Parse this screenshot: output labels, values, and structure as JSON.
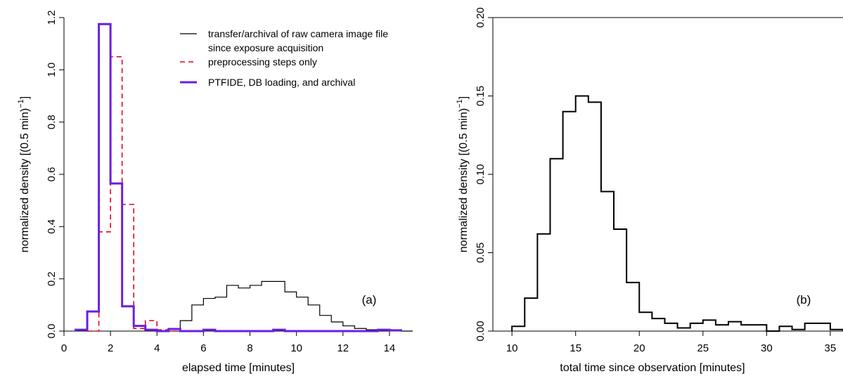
{
  "chart_data": [
    {
      "type": "line",
      "panel_label": "(a)",
      "xlabel": "elapsed time [minutes]",
      "ylabel": "normalized density  [(0.5 min)",
      "ylabel_sup": "−1",
      "ylabel_close": "]",
      "xlim": [
        0,
        15
      ],
      "ylim": [
        0,
        1.2
      ],
      "xticks": [
        0,
        2,
        4,
        6,
        8,
        10,
        12,
        14
      ],
      "yticks": [
        0.0,
        0.2,
        0.4,
        0.6,
        0.8,
        1.0,
        1.2
      ],
      "ytick_labels": [
        "0.0",
        "0.2",
        "0.4",
        "0.6",
        "0.8",
        "1.0",
        "1.2"
      ],
      "bin_width": 0.5,
      "grid": false,
      "legend_position": "top-right",
      "series": [
        {
          "name": "transfer/archival of raw camera image file",
          "name_line2": "since exposure acquisition",
          "color": "#000000",
          "style": "solid",
          "width": 1.2,
          "bins_start": [
            4.5,
            5,
            5.5,
            6,
            6.5,
            7,
            7.5,
            8,
            8.5,
            9,
            9.5,
            10,
            10.5,
            11,
            11.5,
            12,
            12.5,
            13,
            13.5,
            14,
            14.5
          ],
          "values": [
            0.01,
            0.04,
            0.1,
            0.125,
            0.13,
            0.175,
            0.165,
            0.175,
            0.19,
            0.19,
            0.15,
            0.13,
            0.1,
            0.06,
            0.035,
            0.02,
            0.01,
            0.005,
            0.005,
            0.005,
            0
          ]
        },
        {
          "name": "preprocessing steps only",
          "color": "#e8001c",
          "style": "dashed",
          "width": 1.6,
          "bins_start": [
            1,
            1.5,
            2,
            2.5,
            3,
            3.5,
            4,
            4.5
          ],
          "values": [
            0,
            0.38,
            1.05,
            0.485,
            0.01,
            0.04,
            0.005,
            0
          ]
        },
        {
          "name": "PTFIDE, DB loading, and archival",
          "color": "#6a1fe0",
          "style": "solid",
          "width": 3,
          "bins_start": [
            0.5,
            1,
            1.5,
            2,
            2.5,
            3,
            3.5,
            4,
            4.5,
            5,
            5.5,
            6,
            6.5,
            7,
            7.5,
            8,
            8.5,
            9,
            9.5,
            10,
            10.5,
            11,
            11.5,
            12,
            12.5,
            13,
            13.5,
            14
          ],
          "values": [
            0.005,
            0.075,
            1.175,
            0.565,
            0.095,
            0.02,
            0.005,
            0,
            0.008,
            0,
            0,
            0.005,
            0,
            0,
            0,
            0,
            0,
            0.005,
            0,
            0,
            0,
            0,
            0,
            0,
            0,
            0,
            0.005,
            0.003
          ]
        }
      ]
    },
    {
      "type": "line",
      "panel_label": "(b)",
      "xlabel": "total time since observation [minutes]",
      "ylabel": "normalized density  [(0.5 min)",
      "ylabel_sup": "−1",
      "ylabel_close": "]",
      "xlim": [
        8.5,
        36
      ],
      "ylim": [
        0,
        0.2
      ],
      "xticks": [
        10,
        15,
        20,
        25,
        30,
        35
      ],
      "yticks": [
        0.0,
        0.05,
        0.1,
        0.15,
        0.2
      ],
      "ytick_labels": [
        "0.00",
        "0.05",
        "0.10",
        "0.15",
        "0.20"
      ],
      "bin_width": 1,
      "grid": false,
      "series": [
        {
          "color": "#000000",
          "style": "solid",
          "width": 2,
          "bins_start": [
            10,
            11,
            12,
            13,
            14,
            15,
            16,
            17,
            18,
            19,
            20,
            21,
            22,
            23,
            24,
            25,
            26,
            27,
            28,
            29,
            30,
            31,
            32,
            33,
            34,
            35
          ],
          "values": [
            0.003,
            0.021,
            0.062,
            0.11,
            0.14,
            0.15,
            0.146,
            0.089,
            0.065,
            0.031,
            0.012,
            0.008,
            0.005,
            0.002,
            0.005,
            0.007,
            0.004,
            0.006,
            0.004,
            0.004,
            0,
            0.003,
            0.001,
            0.005,
            0.005,
            0.001
          ]
        }
      ]
    }
  ]
}
